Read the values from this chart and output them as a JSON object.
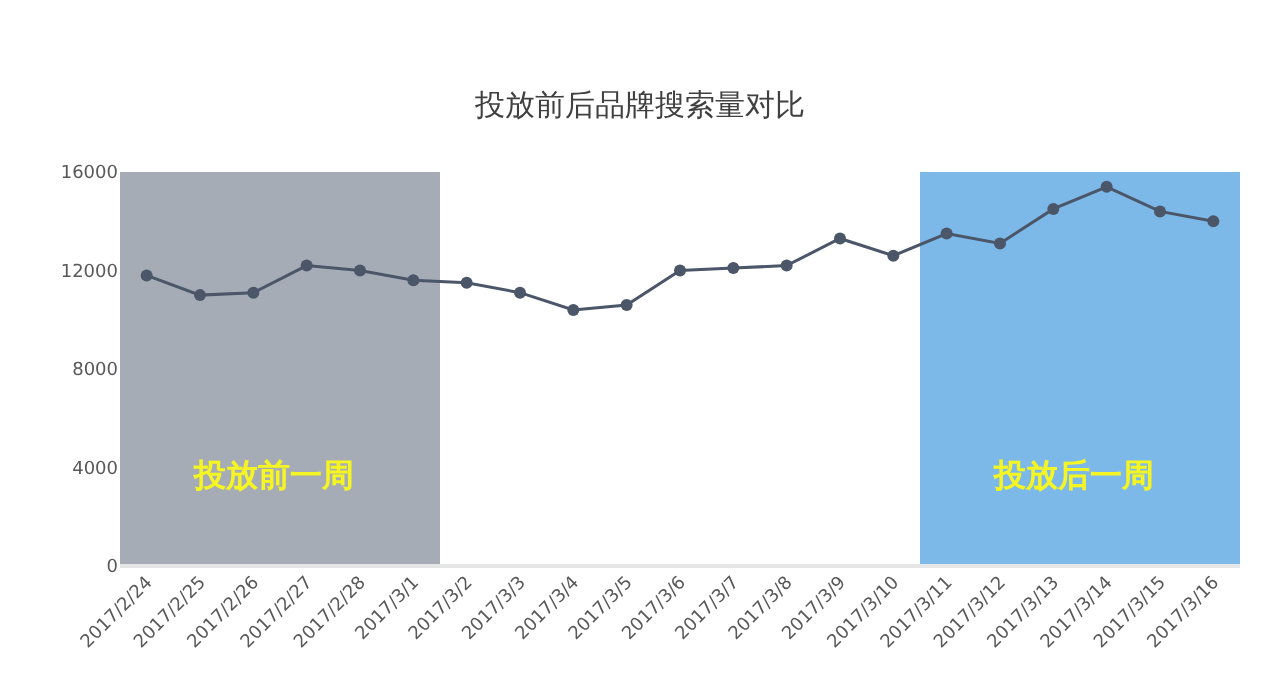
{
  "chart_data": {
    "type": "line",
    "title": "投放前后品牌搜索量对比",
    "categories": [
      "2017/2/24",
      "2017/2/25",
      "2017/2/26",
      "2017/2/27",
      "2017/2/28",
      "2017/3/1",
      "2017/3/2",
      "2017/3/3",
      "2017/3/4",
      "2017/3/5",
      "2017/3/6",
      "2017/3/7",
      "2017/3/8",
      "2017/3/9",
      "2017/3/10",
      "2017/3/11",
      "2017/3/12",
      "2017/3/13",
      "2017/3/14",
      "2017/3/15",
      "2017/3/16"
    ],
    "series": [
      {
        "color": "#4b5669",
        "values": [
          11800,
          11000,
          11100,
          12200,
          12000,
          11600,
          11500,
          11100,
          10400,
          10600,
          12000,
          12100,
          12200,
          13300,
          12600,
          13500,
          13100,
          14500,
          15400,
          14400,
          14000
        ]
      }
    ],
    "ylim": [
      0,
      16000
    ],
    "yticks": [
      0,
      4000,
      8000,
      12000,
      16000
    ],
    "grid": false,
    "marker": "circle",
    "line_style": "solid",
    "bands": [
      {
        "axis": "x",
        "from": "2017/2/24",
        "to": "2017/3/1",
        "label": "投放前一周",
        "color": "#a5acb5"
      },
      {
        "axis": "x",
        "from": "2017/3/11",
        "to": "2017/3/16",
        "label": "投放后一周",
        "color": "#7db9e8"
      }
    ]
  }
}
